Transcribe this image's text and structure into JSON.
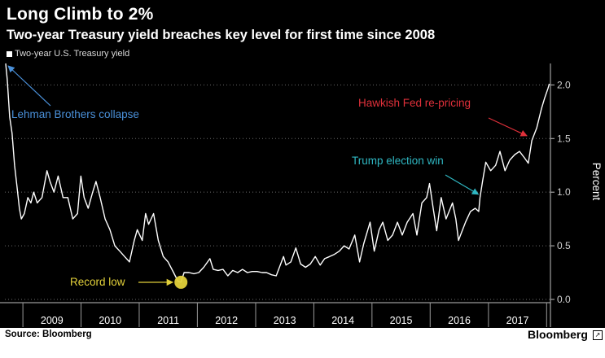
{
  "header": {
    "title": "Long Climb to 2%",
    "subtitle": "Two-year Treasury yield breaches key level for first time since 2008"
  },
  "footer": {
    "source": "Source: Bloomberg",
    "brand": "Bloomberg"
  },
  "chart_data": {
    "type": "line",
    "series": [
      {
        "name": "Two-year U.S. Treasury yield",
        "color": "#ffffff",
        "points": [
          [
            "2008-09-15",
            2.2
          ],
          [
            "2008-09-25",
            2.05
          ],
          [
            "2008-10-10",
            1.7
          ],
          [
            "2008-10-25",
            1.55
          ],
          [
            "2008-11-10",
            1.25
          ],
          [
            "2008-11-25",
            1.05
          ],
          [
            "2008-12-10",
            0.85
          ],
          [
            "2008-12-22",
            0.75
          ],
          [
            "2009-01-10",
            0.8
          ],
          [
            "2009-02-01",
            0.95
          ],
          [
            "2009-02-20",
            0.9
          ],
          [
            "2009-03-10",
            1.0
          ],
          [
            "2009-04-01",
            0.9
          ],
          [
            "2009-05-01",
            0.95
          ],
          [
            "2009-06-01",
            1.2
          ],
          [
            "2009-06-20",
            1.1
          ],
          [
            "2009-07-15",
            1.0
          ],
          [
            "2009-08-10",
            1.15
          ],
          [
            "2009-09-10",
            0.95
          ],
          [
            "2009-10-10",
            0.95
          ],
          [
            "2009-11-10",
            0.75
          ],
          [
            "2009-12-10",
            0.8
          ],
          [
            "2009-12-31",
            1.15
          ],
          [
            "2010-01-20",
            0.95
          ],
          [
            "2010-02-15",
            0.85
          ],
          [
            "2010-03-15",
            1.0
          ],
          [
            "2010-04-05",
            1.1
          ],
          [
            "2010-05-01",
            0.95
          ],
          [
            "2010-06-01",
            0.75
          ],
          [
            "2010-07-01",
            0.65
          ],
          [
            "2010-08-01",
            0.5
          ],
          [
            "2010-09-01",
            0.45
          ],
          [
            "2010-10-01",
            0.4
          ],
          [
            "2010-11-01",
            0.35
          ],
          [
            "2010-12-01",
            0.55
          ],
          [
            "2010-12-20",
            0.65
          ],
          [
            "2011-01-20",
            0.55
          ],
          [
            "2011-02-10",
            0.8
          ],
          [
            "2011-03-01",
            0.7
          ],
          [
            "2011-04-01",
            0.8
          ],
          [
            "2011-05-01",
            0.55
          ],
          [
            "2011-06-01",
            0.4
          ],
          [
            "2011-07-01",
            0.35
          ],
          [
            "2011-08-05",
            0.25
          ],
          [
            "2011-09-01",
            0.17
          ],
          [
            "2011-09-20",
            0.16
          ],
          [
            "2011-10-10",
            0.25
          ],
          [
            "2011-11-10",
            0.25
          ],
          [
            "2011-12-10",
            0.24
          ],
          [
            "2012-01-10",
            0.25
          ],
          [
            "2012-02-10",
            0.3
          ],
          [
            "2012-03-20",
            0.38
          ],
          [
            "2012-04-10",
            0.28
          ],
          [
            "2012-05-10",
            0.27
          ],
          [
            "2012-06-10",
            0.28
          ],
          [
            "2012-07-10",
            0.22
          ],
          [
            "2012-08-10",
            0.27
          ],
          [
            "2012-09-10",
            0.25
          ],
          [
            "2012-10-10",
            0.28
          ],
          [
            "2012-11-10",
            0.25
          ],
          [
            "2012-12-10",
            0.26
          ],
          [
            "2013-01-10",
            0.26
          ],
          [
            "2013-02-10",
            0.25
          ],
          [
            "2013-03-10",
            0.25
          ],
          [
            "2013-04-10",
            0.23
          ],
          [
            "2013-05-10",
            0.22
          ],
          [
            "2013-06-25",
            0.4
          ],
          [
            "2013-07-10",
            0.32
          ],
          [
            "2013-08-10",
            0.35
          ],
          [
            "2013-09-10",
            0.48
          ],
          [
            "2013-10-10",
            0.33
          ],
          [
            "2013-11-10",
            0.3
          ],
          [
            "2013-12-10",
            0.33
          ],
          [
            "2014-01-10",
            0.4
          ],
          [
            "2014-02-10",
            0.32
          ],
          [
            "2014-03-10",
            0.38
          ],
          [
            "2014-04-10",
            0.4
          ],
          [
            "2014-05-10",
            0.42
          ],
          [
            "2014-06-10",
            0.45
          ],
          [
            "2014-07-10",
            0.5
          ],
          [
            "2014-08-10",
            0.47
          ],
          [
            "2014-09-15",
            0.6
          ],
          [
            "2014-10-15",
            0.35
          ],
          [
            "2014-11-10",
            0.52
          ],
          [
            "2014-12-20",
            0.72
          ],
          [
            "2015-01-15",
            0.45
          ],
          [
            "2015-02-15",
            0.65
          ],
          [
            "2015-03-10",
            0.72
          ],
          [
            "2015-04-10",
            0.55
          ],
          [
            "2015-05-10",
            0.6
          ],
          [
            "2015-06-10",
            0.72
          ],
          [
            "2015-07-10",
            0.6
          ],
          [
            "2015-08-10",
            0.72
          ],
          [
            "2015-09-15",
            0.8
          ],
          [
            "2015-10-10",
            0.6
          ],
          [
            "2015-11-10",
            0.9
          ],
          [
            "2015-12-10",
            0.95
          ],
          [
            "2015-12-28",
            1.08
          ],
          [
            "2016-01-20",
            0.85
          ],
          [
            "2016-02-11",
            0.64
          ],
          [
            "2016-03-10",
            0.95
          ],
          [
            "2016-04-10",
            0.75
          ],
          [
            "2016-05-20",
            0.9
          ],
          [
            "2016-06-10",
            0.75
          ],
          [
            "2016-06-27",
            0.55
          ],
          [
            "2016-07-10",
            0.6
          ],
          [
            "2016-08-10",
            0.72
          ],
          [
            "2016-09-10",
            0.82
          ],
          [
            "2016-10-10",
            0.85
          ],
          [
            "2016-11-01",
            0.82
          ],
          [
            "2016-11-09",
            0.95
          ],
          [
            "2016-11-25",
            1.1
          ],
          [
            "2016-12-15",
            1.28
          ],
          [
            "2017-01-15",
            1.2
          ],
          [
            "2017-02-15",
            1.25
          ],
          [
            "2017-03-14",
            1.38
          ],
          [
            "2017-04-15",
            1.2
          ],
          [
            "2017-05-15",
            1.3
          ],
          [
            "2017-06-15",
            1.35
          ],
          [
            "2017-07-15",
            1.38
          ],
          [
            "2017-08-15",
            1.32
          ],
          [
            "2017-09-08",
            1.27
          ],
          [
            "2017-09-30",
            1.48
          ],
          [
            "2017-10-31",
            1.6
          ],
          [
            "2017-11-30",
            1.78
          ],
          [
            "2017-12-20",
            1.88
          ],
          [
            "2018-01-10",
            1.97
          ],
          [
            "2018-01-18",
            2.01
          ]
        ]
      }
    ],
    "x_ticks": [
      "2009",
      "2010",
      "2011",
      "2012",
      "2013",
      "2014",
      "2015",
      "2016",
      "2017"
    ],
    "y_ticks": [
      "0.0",
      "0.5",
      "1.0",
      "1.5",
      "2.0"
    ],
    "ylabel": "Percent",
    "ylim": [
      0.0,
      2.2
    ],
    "grid": "horizontal dotted",
    "annotations": [
      {
        "text": "Lehman Brothers collapse",
        "color": "#4a90d9",
        "x": "2008-09-15",
        "y": 2.2
      },
      {
        "text": "Record low",
        "color": "#e3d13a",
        "x": "2011-09-20",
        "y": 0.16
      },
      {
        "text": "Trump election win",
        "color": "#2fb7c2",
        "x": "2016-11-09",
        "y": 0.95
      },
      {
        "text": "Hawkish Fed re-pricing",
        "color": "#e0303a",
        "x": "2017-09-30",
        "y": 1.48
      }
    ]
  }
}
